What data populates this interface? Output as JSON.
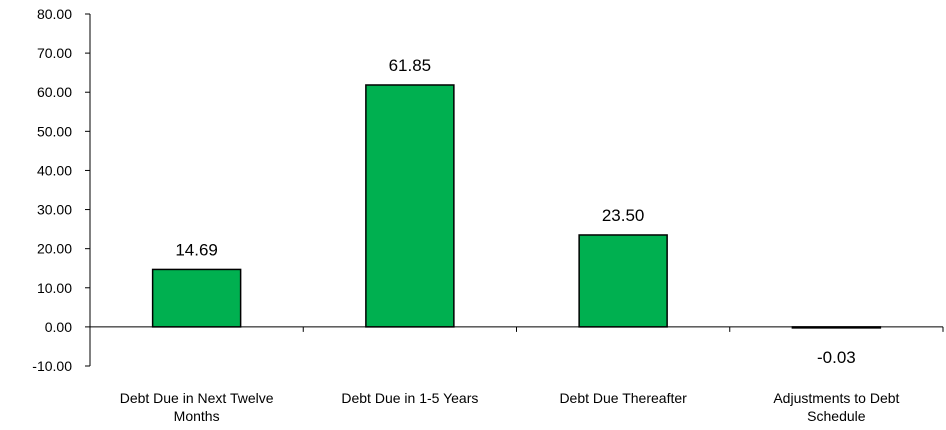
{
  "chart_data": {
    "type": "bar",
    "title": "",
    "xlabel": "",
    "ylabel": "",
    "categories": [
      [
        "Debt Due in Next Twelve",
        "Months"
      ],
      [
        "Debt Due in 1-5 Years"
      ],
      [
        "Debt Due Thereafter"
      ],
      [
        "Adjustments to Debt",
        "Schedule"
      ]
    ],
    "values": [
      14.69,
      61.85,
      23.5,
      -0.03
    ],
    "value_labels": [
      "14.69",
      "61.85",
      "23.50",
      "-0.03"
    ],
    "ylim": [
      -10,
      80
    ],
    "yticks": [
      80,
      70,
      60,
      50,
      40,
      30,
      20,
      10,
      0,
      -10
    ],
    "ytick_labels": [
      "80.00",
      "70.00",
      "60.00",
      "50.00",
      "40.00",
      "30.00",
      "20.00",
      "10.00",
      "0.00",
      "-10.00"
    ],
    "grid": false,
    "legend": "none",
    "colors": {
      "bar_fill": "#00b050",
      "bar_stroke": "#000000",
      "axis": "#000000"
    }
  }
}
